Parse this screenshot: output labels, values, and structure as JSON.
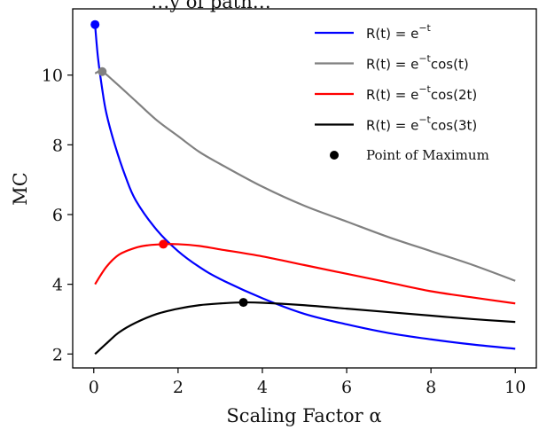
{
  "chart_data": {
    "type": "line",
    "title": "…y of path…",
    "xlabel": "Scaling Factor α",
    "ylabel": "MC",
    "xlim": [
      -0.5,
      10.5
    ],
    "ylim": [
      1.6,
      11.9
    ],
    "xticks": [
      0,
      2,
      4,
      6,
      8,
      10
    ],
    "yticks": [
      2,
      4,
      6,
      8,
      10
    ],
    "xtick_labels": [
      "0",
      "2",
      "4",
      "6",
      "8",
      "10"
    ],
    "ytick_labels": [
      "2",
      "4",
      "6",
      "8",
      "10"
    ],
    "grid": false,
    "legend_position": "top-right",
    "series": [
      {
        "name": "R(t) = e^{-t}",
        "color": "#0000ff",
        "x": [
          0.03,
          0.1,
          0.2,
          0.3,
          0.5,
          0.75,
          1.0,
          1.5,
          2.0,
          2.5,
          3.0,
          4.0,
          5.0,
          6.0,
          7.0,
          8.0,
          9.0,
          10.0
        ],
        "values": [
          11.45,
          10.5,
          9.6,
          8.9,
          8.0,
          7.1,
          6.4,
          5.55,
          4.95,
          4.5,
          4.15,
          3.6,
          3.15,
          2.85,
          2.6,
          2.42,
          2.27,
          2.15
        ]
      },
      {
        "name": "R(t) = e^{-t}cos(t)",
        "color": "#808080",
        "x": [
          0.03,
          0.2,
          0.5,
          1.0,
          1.5,
          2.0,
          2.5,
          3.0,
          4.0,
          5.0,
          6.0,
          7.0,
          8.0,
          9.0,
          10.0
        ],
        "values": [
          10.05,
          10.1,
          9.8,
          9.25,
          8.7,
          8.25,
          7.8,
          7.45,
          6.8,
          6.25,
          5.8,
          5.35,
          4.95,
          4.55,
          4.1
        ]
      },
      {
        "name": "R(t) = e^{-t}cos(2t)",
        "color": "#ff0000",
        "x": [
          0.03,
          0.3,
          0.6,
          1.0,
          1.3,
          1.65,
          2.0,
          2.5,
          3.0,
          4.0,
          5.0,
          6.0,
          7.0,
          8.0,
          9.0,
          10.0
        ],
        "values": [
          4.0,
          4.5,
          4.85,
          5.05,
          5.12,
          5.15,
          5.15,
          5.1,
          5.0,
          4.8,
          4.55,
          4.3,
          4.05,
          3.8,
          3.62,
          3.45
        ]
      },
      {
        "name": "R(t) = e^{-t}cos(3t)",
        "color": "#000000",
        "x": [
          0.03,
          0.3,
          0.6,
          1.0,
          1.5,
          2.0,
          2.5,
          3.0,
          3.55,
          4.0,
          5.0,
          6.0,
          7.0,
          8.0,
          9.0,
          10.0
        ],
        "values": [
          2.0,
          2.3,
          2.62,
          2.9,
          3.15,
          3.3,
          3.4,
          3.45,
          3.48,
          3.47,
          3.4,
          3.3,
          3.2,
          3.1,
          3.0,
          2.92
        ]
      }
    ],
    "maxima": [
      {
        "series": 0,
        "x": 0.03,
        "y": 11.45
      },
      {
        "series": 1,
        "x": 0.2,
        "y": 10.1
      },
      {
        "series": 2,
        "x": 1.65,
        "y": 5.15
      },
      {
        "series": 3,
        "x": 3.55,
        "y": 3.48
      }
    ],
    "legend": [
      {
        "kind": "line",
        "label_pre": "R(t) = e",
        "sup": "−t",
        "label_post": "",
        "color": "#0000ff"
      },
      {
        "kind": "line",
        "label_pre": "R(t) = e",
        "sup": "−t",
        "label_post": "cos(t)",
        "color": "#808080"
      },
      {
        "kind": "line",
        "label_pre": "R(t) = e",
        "sup": "−t",
        "label_post": "cos(2t)",
        "color": "#ff0000"
      },
      {
        "kind": "line",
        "label_pre": "R(t) = e",
        "sup": "−t",
        "label_post": "cos(3t)",
        "color": "#000000"
      },
      {
        "kind": "marker",
        "label": "Point of Maximum",
        "color": "#000000"
      }
    ]
  }
}
